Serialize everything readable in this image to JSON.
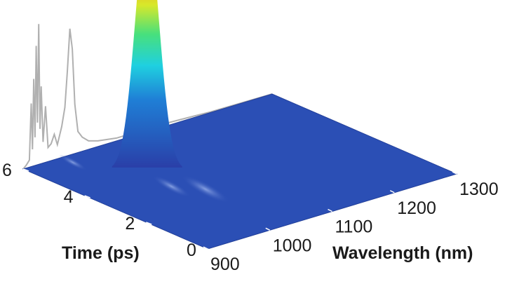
{
  "chart_data": {
    "type": "surface3d",
    "title": "",
    "xlabel": "Wavelength (nm)",
    "ylabel": "Time (ps)",
    "x_ticks": [
      900,
      1000,
      1100,
      1200,
      1300
    ],
    "y_ticks": [
      0,
      2,
      4,
      6
    ],
    "xlim": [
      900,
      1300
    ],
    "ylim": [
      0,
      6
    ],
    "colormap": "jet",
    "grid": false,
    "peak": {
      "wavelength": 1030,
      "time": 4.6,
      "relative_intensity": 1.0
    },
    "minor_features": [
      {
        "wavelength": 1025,
        "time": 2.6,
        "relative_intensity": 0.12
      },
      {
        "wavelength": 1000,
        "time": 3.2,
        "relative_intensity": 0.08
      },
      {
        "wavelength": 960,
        "time": 5.6,
        "relative_intensity": 0.05
      }
    ],
    "spectrum_projection": {
      "color": "#b0b0b0",
      "points": [
        [
          900,
          0.0
        ],
        [
          905,
          0.02
        ],
        [
          910,
          0.05
        ],
        [
          913,
          0.45
        ],
        [
          915,
          0.12
        ],
        [
          917,
          0.62
        ],
        [
          919,
          0.2
        ],
        [
          921,
          0.85
        ],
        [
          923,
          0.3
        ],
        [
          925,
          1.0
        ],
        [
          927,
          0.25
        ],
        [
          929,
          0.55
        ],
        [
          932,
          0.15
        ],
        [
          936,
          0.4
        ],
        [
          940,
          0.1
        ],
        [
          945,
          0.12
        ],
        [
          950,
          0.18
        ],
        [
          955,
          0.1
        ],
        [
          962,
          0.22
        ],
        [
          967,
          0.35
        ],
        [
          971,
          0.6
        ],
        [
          975,
          0.9
        ],
        [
          979,
          0.75
        ],
        [
          983,
          0.35
        ],
        [
          988,
          0.15
        ],
        [
          995,
          0.1
        ],
        [
          1005,
          0.06
        ],
        [
          1020,
          0.04
        ],
        [
          1035,
          0.03
        ],
        [
          1050,
          0.02
        ],
        [
          1075,
          0.02
        ],
        [
          1088,
          0.02
        ],
        [
          1091,
          0.3
        ],
        [
          1092,
          0.95
        ],
        [
          1093,
          0.3
        ],
        [
          1096,
          0.03
        ],
        [
          1120,
          0.02
        ],
        [
          1150,
          0.015
        ],
        [
          1175,
          0.01
        ],
        [
          1200,
          0.005
        ],
        [
          1300,
          0.0
        ]
      ]
    }
  }
}
